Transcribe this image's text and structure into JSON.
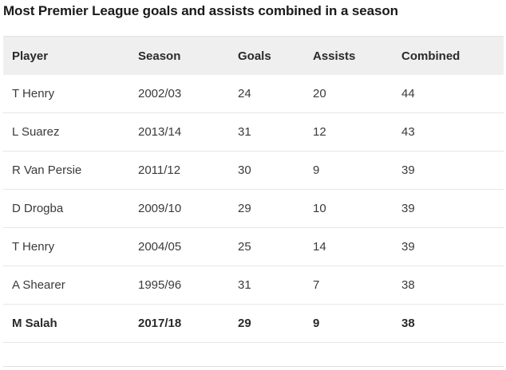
{
  "title": "Most Premier League goals and assists combined in a season",
  "columns": {
    "player": "Player",
    "season": "Season",
    "goals": "Goals",
    "assists": "Assists",
    "combined": "Combined"
  },
  "rows": [
    {
      "player": "T Henry",
      "season": "2002/03",
      "goals": "24",
      "assists": "20",
      "combined": "44",
      "bold": false
    },
    {
      "player": "L Suarez",
      "season": "2013/14",
      "goals": "31",
      "assists": "12",
      "combined": "43",
      "bold": false
    },
    {
      "player": "R Van Persie",
      "season": "2011/12",
      "goals": "30",
      "assists": "9",
      "combined": "39",
      "bold": false
    },
    {
      "player": "D Drogba",
      "season": "2009/10",
      "goals": "29",
      "assists": "10",
      "combined": "39",
      "bold": false
    },
    {
      "player": "T Henry",
      "season": "2004/05",
      "goals": "25",
      "assists": "14",
      "combined": "39",
      "bold": false
    },
    {
      "player": "A Shearer",
      "season": "1995/96",
      "goals": "31",
      "assists": "7",
      "combined": "38",
      "bold": false
    },
    {
      "player": "M Salah",
      "season": "2017/18",
      "goals": "29",
      "assists": "9",
      "combined": "38",
      "bold": true
    }
  ]
}
